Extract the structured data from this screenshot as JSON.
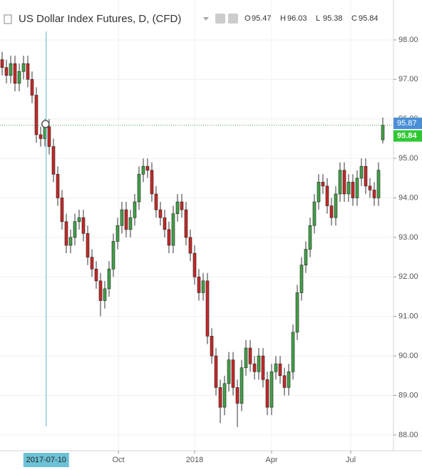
{
  "chart_data": {
    "type": "candlestick",
    "title": "US Dollar Index Futures, D, (CFD)",
    "ohlc_labels": [
      "O",
      "H",
      "L",
      "C"
    ],
    "up_color": "#43a047",
    "down_color": "#c62828",
    "grid": true,
    "xlim": [
      0,
      92
    ],
    "ylim": [
      87.6,
      99.01
    ],
    "xticks": [
      {
        "value": 27.7,
        "label": "Oct"
      },
      {
        "value": 45.5,
        "label": "2018"
      },
      {
        "value": 63.5,
        "label": "Apr"
      },
      {
        "value": 82,
        "label": "Jul"
      }
    ],
    "yticks": [
      {
        "value": 88,
        "label": "88.00"
      },
      {
        "value": 89,
        "label": "89.00"
      },
      {
        "value": 90,
        "label": "90.00"
      },
      {
        "value": 91,
        "label": "91.00"
      },
      {
        "value": 92,
        "label": "92.00"
      },
      {
        "value": 93,
        "label": "93.00"
      },
      {
        "value": 94,
        "label": "94.00"
      },
      {
        "value": 95,
        "label": "95.00"
      },
      {
        "value": 96,
        "label": "96.00"
      },
      {
        "value": 97,
        "label": "97.00"
      },
      {
        "value": 98,
        "label": "98.00"
      }
    ],
    "crosshair": {
      "x": {
        "value": 10.8,
        "label": "2017-07-10"
      },
      "y": 95.87
    },
    "open": [
      97.5,
      97.3,
      97.1,
      97.4,
      96.9,
      97.2,
      97.4,
      97.0,
      96.6,
      95.6,
      95.5,
      95.8,
      95.3,
      94.6,
      94.0,
      93.4,
      92.8,
      93.0,
      93.4,
      93.5,
      93.1,
      92.5,
      92.2,
      91.9,
      91.4,
      91.7,
      92.2,
      92.9,
      93.3,
      93.7,
      93.2,
      93.5,
      93.9,
      94.6,
      94.8,
      94.7,
      94.1,
      93.7,
      93.5,
      93.2,
      92.8,
      93.6,
      93.9,
      93.7,
      93.0,
      92.6,
      92.0,
      91.6,
      91.9,
      90.5,
      90.0,
      89.2,
      88.7,
      89.3,
      89.9,
      89.2,
      88.8,
      89.7,
      90.2,
      89.8,
      89.6,
      90.0,
      89.4,
      88.7,
      89.6,
      89.8,
      89.5,
      89.2,
      89.6,
      90.6,
      91.6,
      92.3,
      92.7,
      93.3,
      93.9,
      94.4,
      94.3,
      93.8,
      93.5,
      94.1,
      94.7,
      94.1,
      94.4,
      94.0,
      94.5,
      94.8,
      94.3,
      94.2,
      94.0,
      95.47
    ],
    "high": [
      97.7,
      97.5,
      97.6,
      97.6,
      97.4,
      97.6,
      97.6,
      97.2,
      96.8,
      95.8,
      96.0,
      96.0,
      95.5,
      94.8,
      94.2,
      93.6,
      93.2,
      93.6,
      93.7,
      93.7,
      93.3,
      92.7,
      92.4,
      92.1,
      91.9,
      92.4,
      93.1,
      93.5,
      93.9,
      93.9,
      93.7,
      94.1,
      94.8,
      95.0,
      95.0,
      94.9,
      94.3,
      93.9,
      93.7,
      93.4,
      93.8,
      94.1,
      94.1,
      93.9,
      93.2,
      92.8,
      92.2,
      92.1,
      92.1,
      90.7,
      90.2,
      89.4,
      89.5,
      90.1,
      90.1,
      89.4,
      89.9,
      90.4,
      90.4,
      90.0,
      90.2,
      90.2,
      89.6,
      89.8,
      90.0,
      90.0,
      89.7,
      89.8,
      90.8,
      91.8,
      92.5,
      92.9,
      93.5,
      94.1,
      94.6,
      94.6,
      94.5,
      94.0,
      94.3,
      94.9,
      94.9,
      94.6,
      94.6,
      94.7,
      95.0,
      95.0,
      94.5,
      94.4,
      94.9,
      96.03
    ],
    "low": [
      97.1,
      96.9,
      96.9,
      96.7,
      96.7,
      97.0,
      96.8,
      96.4,
      95.4,
      95.3,
      95.3,
      95.1,
      94.4,
      93.8,
      93.2,
      92.6,
      92.6,
      92.8,
      93.2,
      92.9,
      92.3,
      92.0,
      91.7,
      91.0,
      91.2,
      91.5,
      92.0,
      92.7,
      93.1,
      93.0,
      93.0,
      93.3,
      93.7,
      94.4,
      94.5,
      93.9,
      93.5,
      93.3,
      93.0,
      92.6,
      92.6,
      93.4,
      93.5,
      92.8,
      92.4,
      91.8,
      91.4,
      91.4,
      90.3,
      89.8,
      89.0,
      88.3,
      88.5,
      89.1,
      89.0,
      88.2,
      88.6,
      89.5,
      89.6,
      89.4,
      89.4,
      89.2,
      88.5,
      88.5,
      89.4,
      89.3,
      89.0,
      89.0,
      89.4,
      90.4,
      91.4,
      92.1,
      92.5,
      93.1,
      93.7,
      94.1,
      93.6,
      93.3,
      93.3,
      93.9,
      93.9,
      93.9,
      93.8,
      93.8,
      94.3,
      94.1,
      94.0,
      93.8,
      93.8,
      95.38
    ],
    "close": [
      97.3,
      97.1,
      97.4,
      96.9,
      97.2,
      97.4,
      97.0,
      96.6,
      95.6,
      95.5,
      95.8,
      95.3,
      94.6,
      94.0,
      93.4,
      92.8,
      93.0,
      93.4,
      93.5,
      93.1,
      92.5,
      92.2,
      91.9,
      91.4,
      91.7,
      92.2,
      92.9,
      93.3,
      93.7,
      93.2,
      93.5,
      93.9,
      94.6,
      94.8,
      94.7,
      94.1,
      93.7,
      93.5,
      93.2,
      92.8,
      93.6,
      93.9,
      93.7,
      93.0,
      92.6,
      92.0,
      91.6,
      91.9,
      90.5,
      90.0,
      89.2,
      88.7,
      89.3,
      89.9,
      89.2,
      88.8,
      89.7,
      90.2,
      89.8,
      89.6,
      90.0,
      89.4,
      88.7,
      89.6,
      89.8,
      89.5,
      89.2,
      89.6,
      90.6,
      91.6,
      92.3,
      92.7,
      93.3,
      93.9,
      94.4,
      94.3,
      93.8,
      93.5,
      94.1,
      94.7,
      94.1,
      94.4,
      94.0,
      94.5,
      94.8,
      94.3,
      94.2,
      94.0,
      94.7,
      95.84
    ]
  }
}
